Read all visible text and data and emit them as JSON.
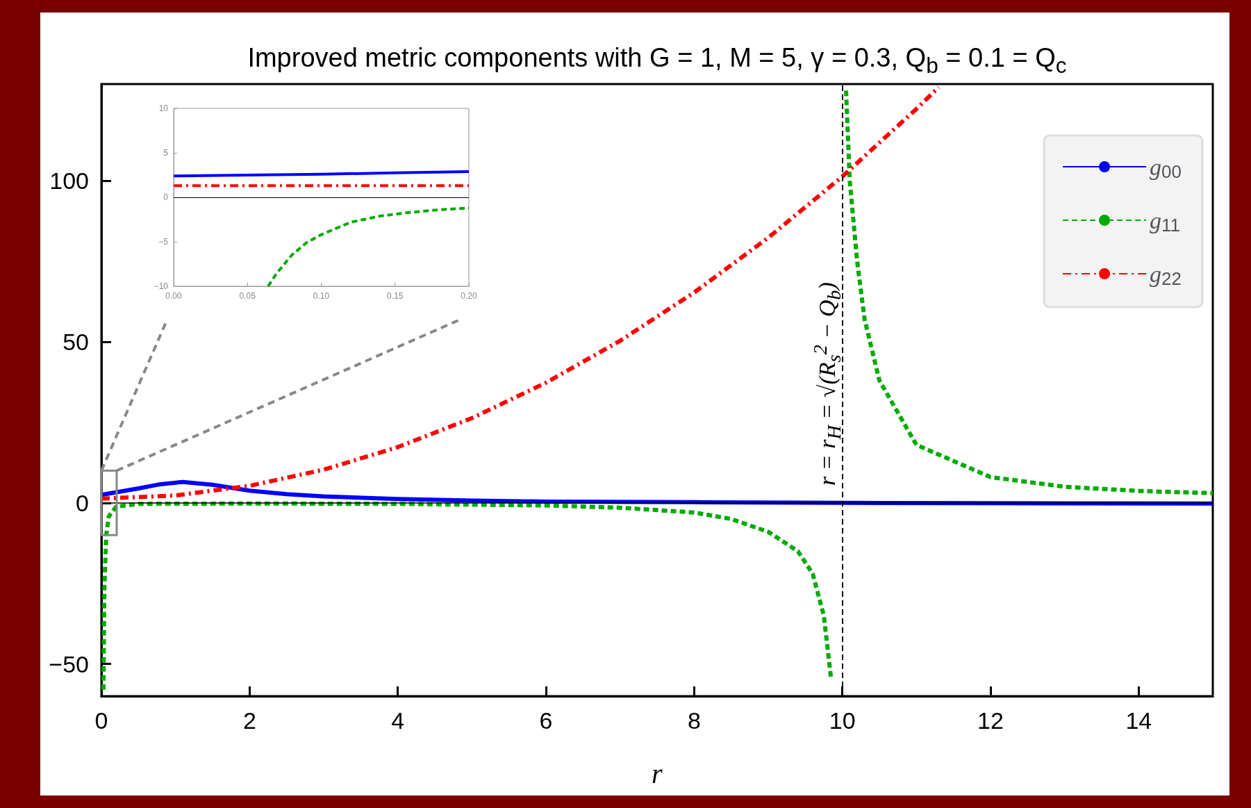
{
  "chart_data": [
    {
      "type": "line",
      "title": "Improved metric components with G = 1, M = 5, γ = 0.3, Q$_{b}$ = 0.1 = Q$_{c}$",
      "xlabel": "r",
      "xlim": [
        0,
        15
      ],
      "xticks": [
        0,
        2,
        4,
        6,
        8,
        10,
        12,
        14
      ],
      "ylim": [
        -60,
        130
      ],
      "yticks": [
        -50,
        0,
        50,
        100
      ],
      "legend": "top right",
      "grid": false,
      "marker": "none",
      "ref_lines": [
        {
          "axis": "x",
          "value": 10,
          "label": "r = r$_{H}$ = √(R$_{s}$$^{2}$ − Q$_{b}$)",
          "color": "#000000",
          "line_style": "dashed"
        },
        {
          "axis": "y",
          "value": 0,
          "color": "#000000",
          "line_style": "solid"
        }
      ],
      "series": [
        {
          "name": "g$_{00}$",
          "color": "#0000ff",
          "line_style": "solid",
          "x": [
            0,
            0.5,
            0.8,
            1.1,
            1.5,
            2,
            2.5,
            3,
            4,
            5,
            6,
            8,
            10,
            12,
            15
          ],
          "values": [
            2.5,
            4.5,
            5.8,
            6.5,
            5.6,
            3.8,
            2.7,
            2,
            1.2,
            0.7,
            0.4,
            0.2,
            0,
            -0.1,
            -0.2
          ]
        },
        {
          "name": "g$_{11}$",
          "color": "#00aa00",
          "line_style": "dashed",
          "x": [
            0.027,
            0.04,
            0.065,
            0.1,
            0.2,
            0.5,
            2,
            4,
            6,
            7,
            8,
            8.5,
            9,
            9.4,
            9.6,
            9.75,
            9.85,
            10,
            10.05,
            10.1,
            10.2,
            10.3,
            10.5,
            11,
            12,
            13,
            14,
            15
          ],
          "values": [
            -58,
            -26,
            -10,
            -4.2,
            -1.2,
            -0.3,
            -0.2,
            -0.3,
            -0.8,
            -1.5,
            -3,
            -5,
            -9,
            -15,
            -22,
            -35,
            -55,
            null,
            128,
            100,
            75,
            57,
            38,
            18,
            8,
            5,
            3.7,
            3
          ]
        },
        {
          "name": "g$_{22}$",
          "color": "#ff0000",
          "line_style": "dashdot",
          "x": [
            0,
            1,
            2,
            3,
            4,
            5,
            6,
            7,
            8,
            9,
            10,
            11,
            11.3
          ],
          "values": [
            1.3,
            2.3,
            5.3,
            10.3,
            17.3,
            26.3,
            37.3,
            50.3,
            65.3,
            82.3,
            101.3,
            122.3,
            129
          ]
        }
      ]
    },
    {
      "type": "line",
      "xlim": [
        0,
        0.2
      ],
      "xticks": [
        {
          "value": 0,
          "label": "0.00"
        },
        0.05,
        {
          "value": 0.1,
          "label": "0.10"
        },
        0.15,
        {
          "value": 0.2,
          "label": "0.20"
        }
      ],
      "ylim": [
        -10,
        10
      ],
      "yticks": [
        -10,
        -5,
        0,
        5,
        10
      ],
      "grid": false,
      "marker": "none",
      "ref_lines": [
        {
          "axis": "y",
          "value": 0,
          "color": "#000000",
          "line_style": "solid"
        }
      ],
      "series": [
        {
          "color": "#0000ff",
          "line_style": "solid",
          "x": [
            0,
            0.05,
            0.1,
            0.15,
            0.2
          ],
          "values": [
            2.4,
            2.5,
            2.6,
            2.75,
            2.9
          ]
        },
        {
          "color": "#00aa00",
          "line_style": "dashed",
          "x": [
            0.064,
            0.07,
            0.08,
            0.09,
            0.1,
            0.12,
            0.14,
            0.16,
            0.18,
            0.2
          ],
          "values": [
            -10,
            -8.5,
            -6.5,
            -5.1,
            -4.2,
            -2.8,
            -2.1,
            -1.7,
            -1.4,
            -1.2
          ]
        },
        {
          "color": "#ff0000",
          "line_style": "dashdot",
          "x": [
            0,
            0.1,
            0.2
          ],
          "values": [
            1.3,
            1.3,
            1.3
          ]
        }
      ]
    }
  ]
}
